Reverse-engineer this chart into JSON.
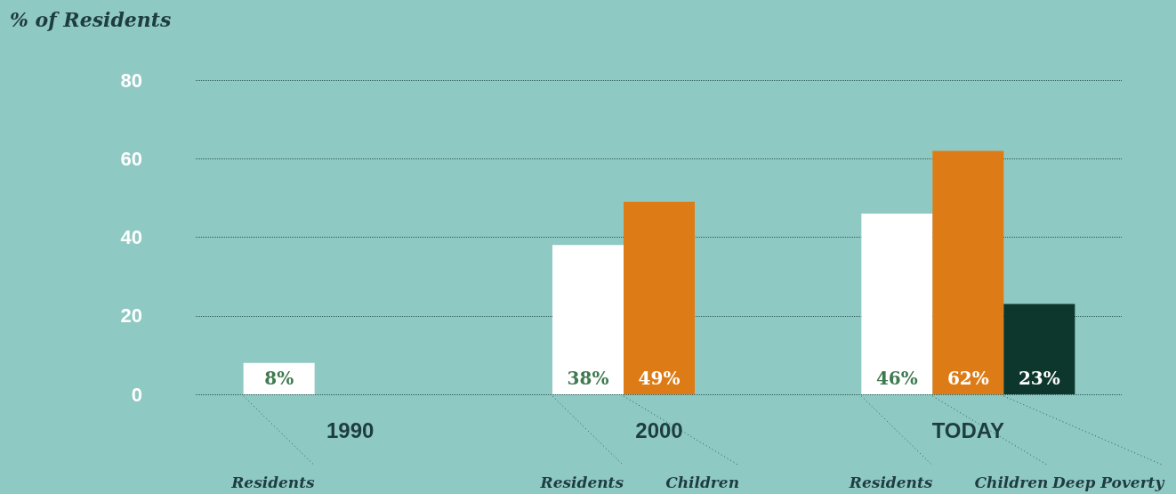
{
  "chart_data": {
    "type": "bar",
    "ylabel": "% of Residents",
    "categories": [
      "1990",
      "2000",
      "TODAY"
    ],
    "series": [
      {
        "name": "Residents",
        "color": "#ffffff",
        "values": [
          8,
          38,
          46
        ],
        "value_labels": [
          "8%",
          "38%",
          "46%"
        ]
      },
      {
        "name": "Children",
        "color": "#dd7c17",
        "values": [
          null,
          49,
          62
        ],
        "value_labels": [
          null,
          "49%",
          "62%"
        ]
      },
      {
        "name": "Deep Poverty",
        "color": "#0d362c",
        "values": [
          null,
          null,
          23
        ],
        "value_labels": [
          null,
          null,
          "23%"
        ]
      }
    ],
    "ylim": [
      0,
      80
    ],
    "yticks": [
      0,
      20,
      40,
      60,
      80
    ],
    "grid": "y",
    "legend": false
  }
}
